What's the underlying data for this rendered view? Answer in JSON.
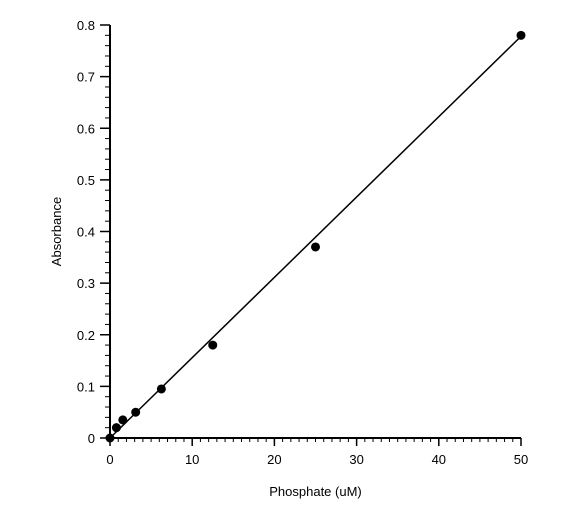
{
  "chart_data": {
    "type": "scatter",
    "title": "",
    "xlabel": "Phosphate (uM)",
    "ylabel": "Absorbance",
    "xlim": [
      0,
      50
    ],
    "ylim": [
      0,
      0.8
    ],
    "x_ticks": [
      0,
      10,
      20,
      30,
      40,
      50
    ],
    "x_tick_labels": [
      "0",
      "10",
      "20",
      "30",
      "40",
      "50"
    ],
    "y_ticks": [
      0,
      0.1,
      0.2,
      0.3,
      0.4,
      0.5,
      0.6,
      0.7,
      0.8
    ],
    "y_tick_labels": [
      "0",
      "0.1",
      "0.2",
      "0.3",
      "0.4",
      "0.5",
      "0.6",
      "0.7",
      "0.8"
    ],
    "grid": false,
    "series": [
      {
        "type": "scatter",
        "x": [
          0,
          0.78,
          1.56,
          3.125,
          6.25,
          12.5,
          25,
          50
        ],
        "y": [
          0,
          0.02,
          0.035,
          0.05,
          0.095,
          0.18,
          0.37,
          0.78
        ]
      }
    ],
    "fit_line": {
      "x": [
        0,
        50
      ],
      "y": [
        0,
        0.778
      ]
    },
    "colors": {
      "marker": "#000000",
      "line": "#000000",
      "axes": "#000000"
    }
  }
}
